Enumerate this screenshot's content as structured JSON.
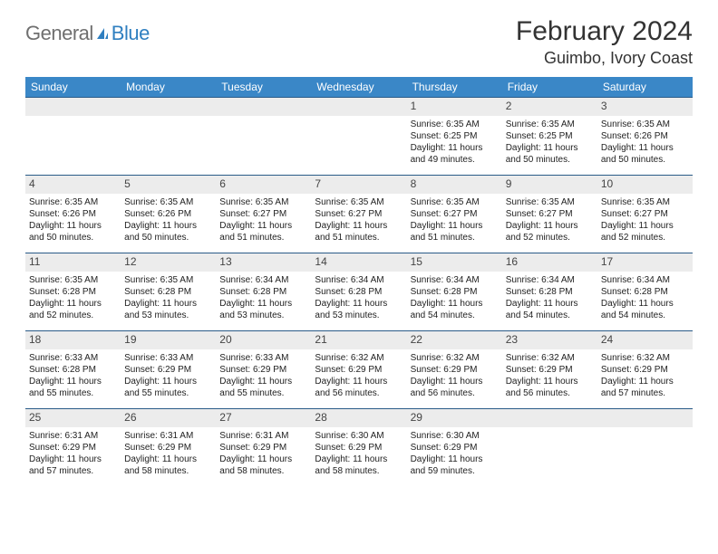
{
  "brand": {
    "part1": "General",
    "part2": "Blue"
  },
  "title": "February 2024",
  "location": "Guimbo, Ivory Coast",
  "colors": {
    "header_bg": "#3a87c7",
    "header_text": "#ffffff",
    "week_border": "#2a5b88",
    "daynum_bg": "#ececec",
    "brand_grey": "#6f6f6f",
    "brand_blue": "#2f7fc0"
  },
  "weekdays": [
    "Sunday",
    "Monday",
    "Tuesday",
    "Wednesday",
    "Thursday",
    "Friday",
    "Saturday"
  ],
  "weeks": [
    [
      null,
      null,
      null,
      null,
      {
        "n": "1",
        "sr": "Sunrise: 6:35 AM",
        "ss": "Sunset: 6:25 PM",
        "d1": "Daylight: 11 hours",
        "d2": "and 49 minutes."
      },
      {
        "n": "2",
        "sr": "Sunrise: 6:35 AM",
        "ss": "Sunset: 6:25 PM",
        "d1": "Daylight: 11 hours",
        "d2": "and 50 minutes."
      },
      {
        "n": "3",
        "sr": "Sunrise: 6:35 AM",
        "ss": "Sunset: 6:26 PM",
        "d1": "Daylight: 11 hours",
        "d2": "and 50 minutes."
      }
    ],
    [
      {
        "n": "4",
        "sr": "Sunrise: 6:35 AM",
        "ss": "Sunset: 6:26 PM",
        "d1": "Daylight: 11 hours",
        "d2": "and 50 minutes."
      },
      {
        "n": "5",
        "sr": "Sunrise: 6:35 AM",
        "ss": "Sunset: 6:26 PM",
        "d1": "Daylight: 11 hours",
        "d2": "and 50 minutes."
      },
      {
        "n": "6",
        "sr": "Sunrise: 6:35 AM",
        "ss": "Sunset: 6:27 PM",
        "d1": "Daylight: 11 hours",
        "d2": "and 51 minutes."
      },
      {
        "n": "7",
        "sr": "Sunrise: 6:35 AM",
        "ss": "Sunset: 6:27 PM",
        "d1": "Daylight: 11 hours",
        "d2": "and 51 minutes."
      },
      {
        "n": "8",
        "sr": "Sunrise: 6:35 AM",
        "ss": "Sunset: 6:27 PM",
        "d1": "Daylight: 11 hours",
        "d2": "and 51 minutes."
      },
      {
        "n": "9",
        "sr": "Sunrise: 6:35 AM",
        "ss": "Sunset: 6:27 PM",
        "d1": "Daylight: 11 hours",
        "d2": "and 52 minutes."
      },
      {
        "n": "10",
        "sr": "Sunrise: 6:35 AM",
        "ss": "Sunset: 6:27 PM",
        "d1": "Daylight: 11 hours",
        "d2": "and 52 minutes."
      }
    ],
    [
      {
        "n": "11",
        "sr": "Sunrise: 6:35 AM",
        "ss": "Sunset: 6:28 PM",
        "d1": "Daylight: 11 hours",
        "d2": "and 52 minutes."
      },
      {
        "n": "12",
        "sr": "Sunrise: 6:35 AM",
        "ss": "Sunset: 6:28 PM",
        "d1": "Daylight: 11 hours",
        "d2": "and 53 minutes."
      },
      {
        "n": "13",
        "sr": "Sunrise: 6:34 AM",
        "ss": "Sunset: 6:28 PM",
        "d1": "Daylight: 11 hours",
        "d2": "and 53 minutes."
      },
      {
        "n": "14",
        "sr": "Sunrise: 6:34 AM",
        "ss": "Sunset: 6:28 PM",
        "d1": "Daylight: 11 hours",
        "d2": "and 53 minutes."
      },
      {
        "n": "15",
        "sr": "Sunrise: 6:34 AM",
        "ss": "Sunset: 6:28 PM",
        "d1": "Daylight: 11 hours",
        "d2": "and 54 minutes."
      },
      {
        "n": "16",
        "sr": "Sunrise: 6:34 AM",
        "ss": "Sunset: 6:28 PM",
        "d1": "Daylight: 11 hours",
        "d2": "and 54 minutes."
      },
      {
        "n": "17",
        "sr": "Sunrise: 6:34 AM",
        "ss": "Sunset: 6:28 PM",
        "d1": "Daylight: 11 hours",
        "d2": "and 54 minutes."
      }
    ],
    [
      {
        "n": "18",
        "sr": "Sunrise: 6:33 AM",
        "ss": "Sunset: 6:28 PM",
        "d1": "Daylight: 11 hours",
        "d2": "and 55 minutes."
      },
      {
        "n": "19",
        "sr": "Sunrise: 6:33 AM",
        "ss": "Sunset: 6:29 PM",
        "d1": "Daylight: 11 hours",
        "d2": "and 55 minutes."
      },
      {
        "n": "20",
        "sr": "Sunrise: 6:33 AM",
        "ss": "Sunset: 6:29 PM",
        "d1": "Daylight: 11 hours",
        "d2": "and 55 minutes."
      },
      {
        "n": "21",
        "sr": "Sunrise: 6:32 AM",
        "ss": "Sunset: 6:29 PM",
        "d1": "Daylight: 11 hours",
        "d2": "and 56 minutes."
      },
      {
        "n": "22",
        "sr": "Sunrise: 6:32 AM",
        "ss": "Sunset: 6:29 PM",
        "d1": "Daylight: 11 hours",
        "d2": "and 56 minutes."
      },
      {
        "n": "23",
        "sr": "Sunrise: 6:32 AM",
        "ss": "Sunset: 6:29 PM",
        "d1": "Daylight: 11 hours",
        "d2": "and 56 minutes."
      },
      {
        "n": "24",
        "sr": "Sunrise: 6:32 AM",
        "ss": "Sunset: 6:29 PM",
        "d1": "Daylight: 11 hours",
        "d2": "and 57 minutes."
      }
    ],
    [
      {
        "n": "25",
        "sr": "Sunrise: 6:31 AM",
        "ss": "Sunset: 6:29 PM",
        "d1": "Daylight: 11 hours",
        "d2": "and 57 minutes."
      },
      {
        "n": "26",
        "sr": "Sunrise: 6:31 AM",
        "ss": "Sunset: 6:29 PM",
        "d1": "Daylight: 11 hours",
        "d2": "and 58 minutes."
      },
      {
        "n": "27",
        "sr": "Sunrise: 6:31 AM",
        "ss": "Sunset: 6:29 PM",
        "d1": "Daylight: 11 hours",
        "d2": "and 58 minutes."
      },
      {
        "n": "28",
        "sr": "Sunrise: 6:30 AM",
        "ss": "Sunset: 6:29 PM",
        "d1": "Daylight: 11 hours",
        "d2": "and 58 minutes."
      },
      {
        "n": "29",
        "sr": "Sunrise: 6:30 AM",
        "ss": "Sunset: 6:29 PM",
        "d1": "Daylight: 11 hours",
        "d2": "and 59 minutes."
      },
      null,
      null
    ]
  ]
}
